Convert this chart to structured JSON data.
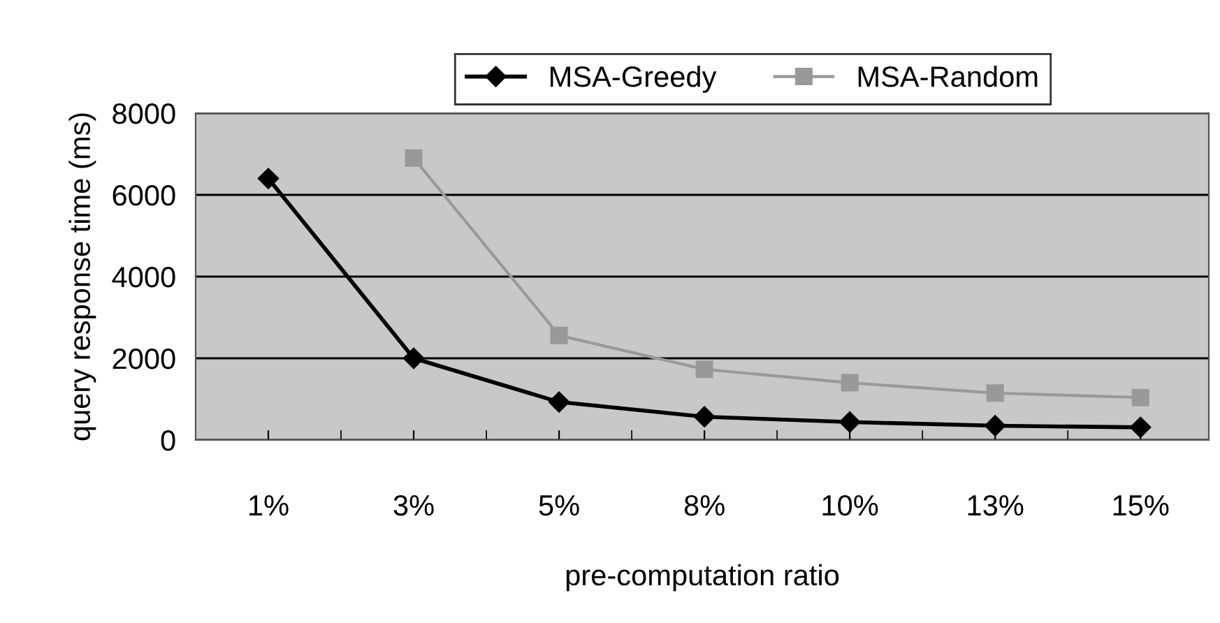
{
  "chart_data": {
    "type": "line",
    "xlabel": "pre-computation ratio",
    "ylabel": "query response time (ms)",
    "categories": [
      "1%",
      "3%",
      "5%",
      "8%",
      "10%",
      "13%",
      "15%"
    ],
    "series": [
      {
        "name": "MSA-Greedy",
        "color": "#000000",
        "marker": "diamond",
        "values": [
          6400,
          2000,
          930,
          570,
          440,
          350,
          310
        ]
      },
      {
        "name": "MSA-Random",
        "color": "#999999",
        "marker": "square",
        "values": [
          null,
          6900,
          2560,
          1730,
          1400,
          1150,
          1040
        ]
      }
    ],
    "ylim": [
      0,
      8000
    ],
    "yticks": [
      0,
      2000,
      4000,
      6000,
      8000
    ],
    "grid": "y",
    "legend": "top"
  }
}
